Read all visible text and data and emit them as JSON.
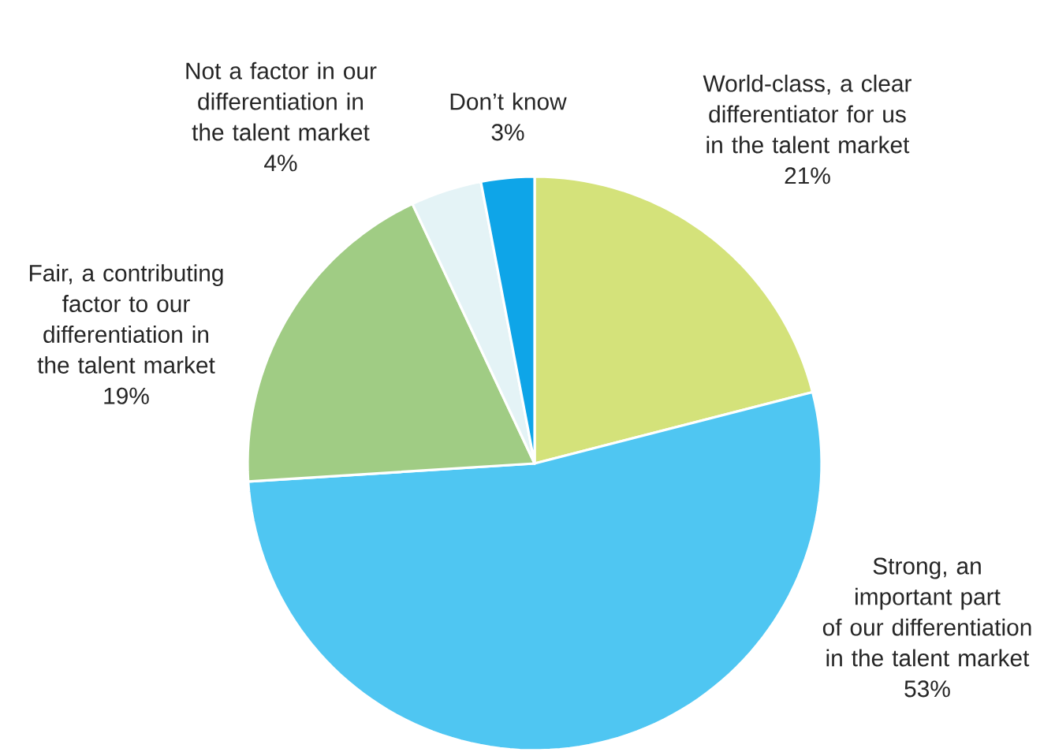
{
  "chart_data": {
    "type": "pie",
    "categories": [
      "World-class, a clear differentiator for us in the talent market",
      "Strong, an important part of our differentiation in the talent market",
      "Fair, a contributing factor to our differentiation in the talent market",
      "Not a factor in our differentiation in the talent market",
      "Don’t know"
    ],
    "values": [
      21,
      53,
      19,
      4,
      3
    ],
    "value_labels": [
      "21%",
      "53%",
      "19%",
      "4%",
      "3%"
    ],
    "colors": [
      "#d4e27a",
      "#4fc6f2",
      "#a0cc84",
      "#e4f3f6",
      "#0ea5e8"
    ]
  }
}
